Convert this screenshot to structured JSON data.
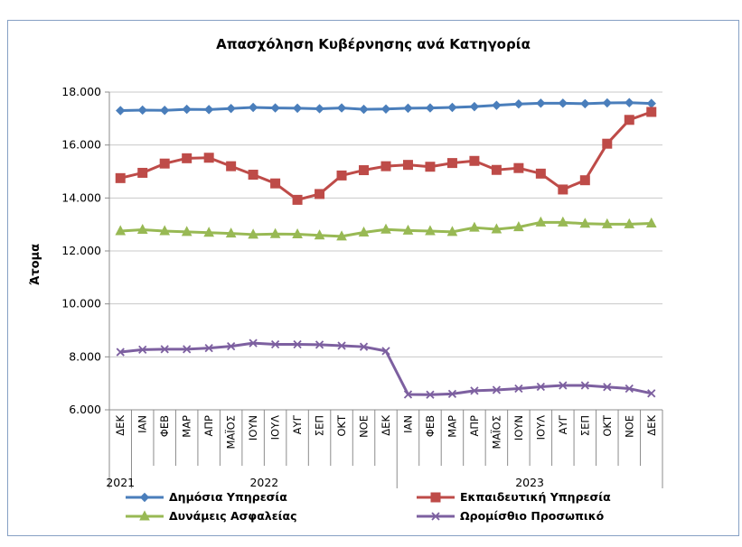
{
  "chart_data": {
    "type": "line",
    "title": "Απασχόληση Κυβέρνησης ανά Κατηγορία",
    "ylabel": "Άτομα",
    "xlabel": "",
    "ylim": [
      6000,
      18000
    ],
    "yticks": [
      6000,
      8000,
      10000,
      12000,
      14000,
      16000,
      18000
    ],
    "ytick_labels": [
      "6.000",
      "8.000",
      "10.000",
      "12.000",
      "14.000",
      "16.000",
      "18.000"
    ],
    "grid": "horizontal",
    "legend_position": "bottom",
    "categories": [
      "ΔΕΚ",
      "ΙΑΝ",
      "ΦΕΒ",
      "ΜΑΡ",
      "ΑΠΡ",
      "ΜΑΪΟΣ",
      "ΙΟΥΝ",
      "ΙΟΥΛ",
      "ΑΥΓ",
      "ΣΕΠ",
      "ΟΚΤ",
      "ΝΟΕ",
      "ΔΕΚ",
      "ΙΑΝ",
      "ΦΕΒ",
      "ΜΑΡ",
      "ΑΠΡ",
      "ΜΑΪΟΣ",
      "ΙΟΥΝ",
      "ΙΟΥΛ",
      "ΑΥΓ",
      "ΣΕΠ",
      "ΟΚΤ",
      "ΝΟΕ",
      "ΔΕΚ"
    ],
    "year_groups": [
      {
        "label": "2021",
        "start": 0,
        "end": 0
      },
      {
        "label": "2022",
        "start": 1,
        "end": 12
      },
      {
        "label": "2023",
        "start": 13,
        "end": 24
      }
    ],
    "series": [
      {
        "name": "Δημόσια Υπηρεσία",
        "color": "#4a7ebb",
        "marker": "diamond",
        "values": [
          17300,
          17320,
          17310,
          17350,
          17340,
          17380,
          17420,
          17400,
          17390,
          17370,
          17400,
          17350,
          17360,
          17390,
          17400,
          17420,
          17450,
          17500,
          17550,
          17580,
          17580,
          17560,
          17590,
          17600,
          17570
        ]
      },
      {
        "name": "Εκπαιδευτική Υπηρεσία",
        "color": "#be4b48",
        "marker": "square",
        "values": [
          14750,
          14950,
          15300,
          15500,
          15520,
          15200,
          14880,
          14550,
          13930,
          14150,
          14850,
          15050,
          15200,
          15250,
          15180,
          15320,
          15400,
          15060,
          15130,
          14920,
          14320,
          14670,
          16050,
          16950,
          17250
        ]
      },
      {
        "name": "Δυνάμεις Ασφαλείας",
        "color": "#98b954",
        "marker": "triangle",
        "values": [
          12750,
          12800,
          12750,
          12720,
          12690,
          12660,
          12620,
          12640,
          12630,
          12590,
          12550,
          12700,
          12810,
          12770,
          12750,
          12720,
          12880,
          12820,
          12900,
          13080,
          13080,
          13030,
          13010,
          13010,
          13040
        ]
      },
      {
        "name": "Ωρομίσθιο Προσωπικό",
        "color": "#7d60a0",
        "marker": "x",
        "values": [
          8180,
          8270,
          8290,
          8290,
          8330,
          8400,
          8520,
          8470,
          8470,
          8460,
          8420,
          8380,
          8220,
          6580,
          6570,
          6600,
          6720,
          6750,
          6800,
          6870,
          6920,
          6920,
          6860,
          6800,
          6620
        ]
      }
    ]
  }
}
